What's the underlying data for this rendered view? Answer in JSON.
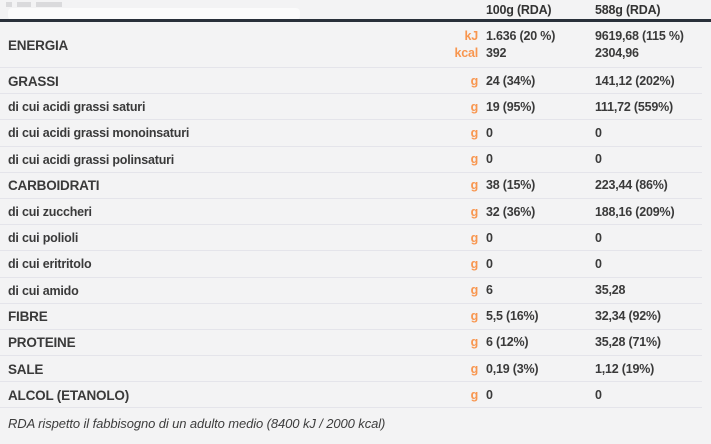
{
  "colors": {
    "background": "#F3F3F4",
    "accent_orange": "#F8964F",
    "header_bar": "#29303A",
    "text": "#3A3A3A",
    "separator": "#E4E4EA"
  },
  "table": {
    "col_headers": [
      "100g (RDA)",
      "588g (RDA)"
    ],
    "rows": [
      {
        "label": "ENERGIA",
        "emphasis": true,
        "lines": [
          {
            "unit": "kJ",
            "v100": "1.636 (20 %)",
            "v588": "9619,68 (115 %)"
          },
          {
            "unit": "kcal",
            "v100": "392",
            "v588": "2304,96"
          }
        ]
      },
      {
        "label": "GRASSI",
        "emphasis": true,
        "lines": [
          {
            "unit": "g",
            "v100": "24 (34%)",
            "v588": "141,12 (202%)"
          }
        ]
      },
      {
        "label": "di cui acidi grassi saturi",
        "emphasis": false,
        "lines": [
          {
            "unit": "g",
            "v100": "19 (95%)",
            "v588": "111,72 (559%)"
          }
        ]
      },
      {
        "label": "di cui acidi grassi monoinsaturi",
        "emphasis": false,
        "lines": [
          {
            "unit": "g",
            "v100": "0",
            "v588": "0"
          }
        ]
      },
      {
        "label": "di cui acidi grassi polinsaturi",
        "emphasis": false,
        "lines": [
          {
            "unit": "g",
            "v100": "0",
            "v588": "0"
          }
        ]
      },
      {
        "label": "CARBOIDRATI",
        "emphasis": true,
        "lines": [
          {
            "unit": "g",
            "v100": "38 (15%)",
            "v588": "223,44 (86%)"
          }
        ]
      },
      {
        "label": "di cui zuccheri",
        "emphasis": false,
        "lines": [
          {
            "unit": "g",
            "v100": "32 (36%)",
            "v588": "188,16 (209%)"
          }
        ]
      },
      {
        "label": "di cui polioli",
        "emphasis": false,
        "lines": [
          {
            "unit": "g",
            "v100": "0",
            "v588": "0"
          }
        ]
      },
      {
        "label": "di cui eritritolo",
        "emphasis": false,
        "lines": [
          {
            "unit": "g",
            "v100": "0",
            "v588": "0"
          }
        ]
      },
      {
        "label": "di cui amido",
        "emphasis": false,
        "lines": [
          {
            "unit": "g",
            "v100": "6",
            "v588": "35,28"
          }
        ]
      },
      {
        "label": "FIBRE",
        "emphasis": true,
        "lines": [
          {
            "unit": "g",
            "v100": "5,5 (16%)",
            "v588": "32,34 (92%)"
          }
        ]
      },
      {
        "label": "PROTEINE",
        "emphasis": true,
        "lines": [
          {
            "unit": "g",
            "v100": "6 (12%)",
            "v588": "35,28 (71%)"
          }
        ]
      },
      {
        "label": "SALE",
        "emphasis": true,
        "lines": [
          {
            "unit": "g",
            "v100": "0,19 (3%)",
            "v588": "1,12 (19%)"
          }
        ]
      },
      {
        "label": "ALCOL (ETANOLO)",
        "emphasis": true,
        "lines": [
          {
            "unit": "g",
            "v100": "0",
            "v588": "0"
          }
        ]
      }
    ]
  },
  "footnote": "RDA rispetto il fabbisogno di un adulto medio (8400 kJ / 2000 kcal)"
}
